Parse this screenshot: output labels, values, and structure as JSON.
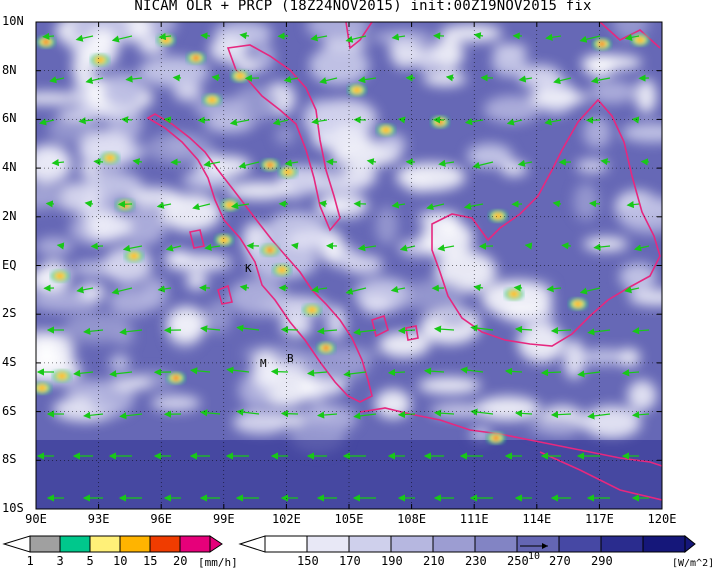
{
  "title": "NICAM OLR + PRCP (18Z24NOV2015) init:00Z19NOV2015 fix",
  "map": {
    "lat_ticks": [
      "10N",
      "8N",
      "6N",
      "4N",
      "2N",
      "EQ",
      "2S",
      "4S",
      "6S",
      "8S",
      "10S"
    ],
    "lon_ticks": [
      "90E",
      "93E",
      "96E",
      "99E",
      "102E",
      "105E",
      "108E",
      "111E",
      "114E",
      "117E",
      "120E"
    ],
    "station_labels": [
      "K",
      "M",
      "B"
    ]
  },
  "legends": {
    "precip": {
      "labels": [
        "1",
        "3",
        "5",
        "10",
        "15",
        "20"
      ],
      "unit": "[mm/h]",
      "colors": [
        "#a0a0a0",
        "#00c88c",
        "#fff078",
        "#ffb400",
        "#f03c00",
        "#e6007a"
      ]
    },
    "olr": {
      "labels": [
        "150",
        "170",
        "190",
        "210",
        "230",
        "250",
        "270",
        "290"
      ],
      "unit": "[W/m^2]",
      "colors": [
        "#ffffff",
        "#e8e8f6",
        "#cfd0ec",
        "#b6b7e0",
        "#9c9dd2",
        "#8284c4",
        "#6466b4",
        "#4648a4",
        "#2a2c8e",
        "#15177a"
      ]
    },
    "vector_label": "10"
  },
  "colors": {
    "coastline": "#e6287f",
    "wind_arrow": "#18c818",
    "frame": "#000000"
  }
}
